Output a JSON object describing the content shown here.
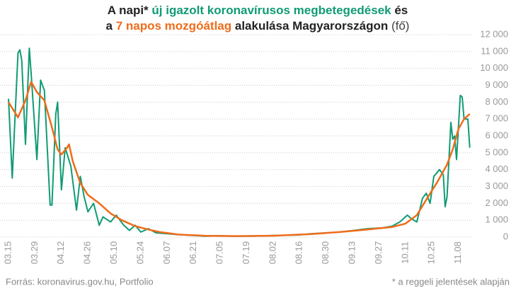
{
  "chart_data": {
    "type": "line",
    "title_lines": [
      [
        {
          "text": "A napi*",
          "color": "#222222",
          "bold": true
        },
        {
          "text": " új igazolt koronavírusos megbetegedések",
          "color": "#109b74",
          "bold": true
        },
        {
          "text": " és",
          "color": "#222222",
          "bold": true
        }
      ],
      [
        {
          "text": "a ",
          "color": "#222222",
          "bold": true
        },
        {
          "text": "7 napos mozgóátlag",
          "color": "#ef6c1a",
          "bold": true
        },
        {
          "text": " alakulása Magyarországon",
          "color": "#222222",
          "bold": true
        },
        {
          "text": " (fő)",
          "color": "#444444",
          "bold": false
        }
      ]
    ],
    "source": "Forrás: koronavirus.gov.hu, Portfolio",
    "note": "* a reggeli jelentések alapján",
    "xlim": [
      0,
      246
    ],
    "xticks": [
      {
        "value": 0,
        "label": "03.15"
      },
      {
        "value": 14,
        "label": "03.29"
      },
      {
        "value": 28,
        "label": "04.12"
      },
      {
        "value": 42,
        "label": "04.26"
      },
      {
        "value": 56,
        "label": "05.10"
      },
      {
        "value": 70,
        "label": "05.24"
      },
      {
        "value": 84,
        "label": "06.07"
      },
      {
        "value": 98,
        "label": "06.21"
      },
      {
        "value": 112,
        "label": "07.05"
      },
      {
        "value": 126,
        "label": "07.19"
      },
      {
        "value": 140,
        "label": "08.02"
      },
      {
        "value": 154,
        "label": "08.16"
      },
      {
        "value": 168,
        "label": "08.30"
      },
      {
        "value": 182,
        "label": "09.13"
      },
      {
        "value": 196,
        "label": "09.27"
      },
      {
        "value": 210,
        "label": "10.11"
      },
      {
        "value": 224,
        "label": "10.25"
      },
      {
        "value": 238,
        "label": "11.08"
      }
    ],
    "ylim": [
      0,
      12000
    ],
    "yticks": [
      0,
      {
        "value": 1000,
        "label": "1 000"
      },
      {
        "value": 2000,
        "label": "2 000"
      },
      {
        "value": 3000,
        "label": "3 000"
      },
      {
        "value": 4000,
        "label": "4 000"
      },
      {
        "value": 5000,
        "label": "5 000"
      },
      {
        "value": 6000,
        "label": "6 000"
      },
      {
        "value": 7000,
        "label": "7 000"
      },
      {
        "value": 8000,
        "label": "8 000"
      },
      {
        "value": 9000,
        "label": "9 000"
      },
      {
        "value": 10000,
        "label": "10 000"
      },
      {
        "value": 11000,
        "label": "11 000"
      },
      {
        "value": 12000,
        "label": "12 000"
      }
    ],
    "grid": true,
    "series": [
      {
        "color": "#109b74",
        "x": [
          0,
          2,
          5,
          6,
          7,
          9,
          11,
          12,
          15,
          17,
          19,
          22,
          23,
          25,
          26,
          28,
          30,
          33,
          36,
          38,
          40,
          42,
          45,
          48,
          50,
          54,
          57,
          61,
          64,
          67,
          70,
          74,
          78,
          84,
          89,
          97,
          104,
          112,
          119,
          130,
          142,
          153,
          160,
          168,
          175,
          183,
          190,
          198,
          203,
          207,
          211,
          213,
          216,
          219,
          221,
          223,
          225,
          228,
          230,
          231,
          232,
          234,
          235,
          236,
          237,
          239,
          240,
          241,
          243,
          244
        ],
        "values": [
          8200,
          3500,
          10900,
          11100,
          10500,
          5500,
          11200,
          9700,
          4600,
          9300,
          8700,
          1900,
          1900,
          7300,
          8000,
          2800,
          5300,
          4200,
          1600,
          3600,
          2400,
          1500,
          2000,
          700,
          1200,
          900,
          1300,
          700,
          400,
          700,
          300,
          500,
          250,
          200,
          150,
          100,
          50,
          80,
          50,
          60,
          100,
          120,
          200,
          250,
          300,
          400,
          500,
          550,
          650,
          900,
          1300,
          1100,
          900,
          2300,
          2600,
          2000,
          3600,
          4000,
          3700,
          1800,
          2400,
          6800,
          5800,
          6000,
          4600,
          8400,
          8300,
          7000,
          7000,
          5300
        ]
      },
      {
        "color": "#ef6c1a",
        "x": [
          0,
          5,
          9,
          12,
          15,
          19,
          23,
          26,
          28,
          31,
          32,
          34,
          38,
          42,
          48,
          54,
          60,
          67,
          74,
          80,
          90,
          104,
          120,
          140,
          160,
          175,
          190,
          203,
          210,
          216,
          222,
          227,
          229,
          232,
          235,
          238,
          241,
          244
        ],
        "values": [
          8000,
          7100,
          8100,
          9200,
          8600,
          8100,
          6500,
          5200,
          4900,
          5300,
          5500,
          4500,
          3200,
          2500,
          2000,
          1400,
          1000,
          650,
          450,
          300,
          150,
          80,
          60,
          80,
          180,
          300,
          450,
          600,
          800,
          1300,
          2400,
          3300,
          3700,
          4300,
          5200,
          6400,
          7000,
          7300
        ]
      }
    ]
  }
}
